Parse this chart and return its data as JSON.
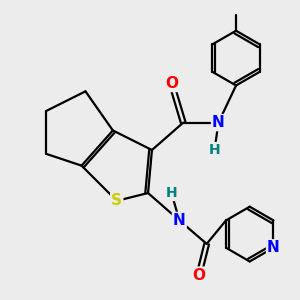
{
  "background_color": "#ececec",
  "bond_color": "#000000",
  "bond_width": 1.6,
  "atom_colors": {
    "O": "#ff0000",
    "N": "#0000ff",
    "S": "#cccc00",
    "H": "#008080"
  },
  "font_size_atom": 11,
  "font_size_H": 10
}
